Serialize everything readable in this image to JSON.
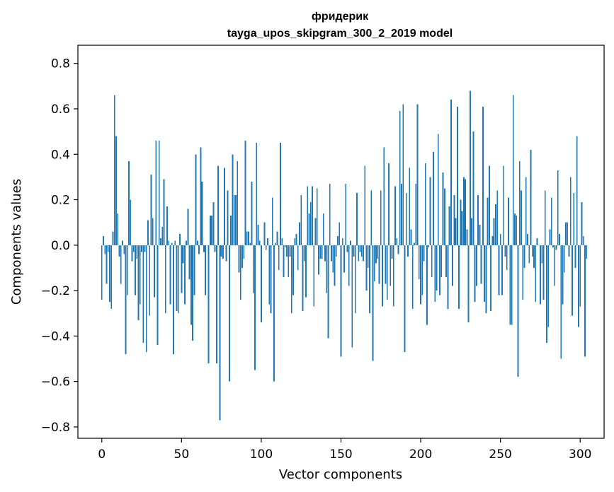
{
  "chart_data": {
    "type": "bar",
    "title_line1": "фридерик",
    "title_line2": "tayga_upos_skipgram_300_2_2019 model",
    "xlabel": "Vector components",
    "ylabel": "Components values",
    "xlim": [
      -15,
      315
    ],
    "ylim": [
      -0.85,
      0.88
    ],
    "xticks": [
      0,
      50,
      100,
      150,
      200,
      250,
      300
    ],
    "xtick_labels": [
      "0",
      "50",
      "100",
      "150",
      "200",
      "250",
      "300"
    ],
    "yticks": [
      -0.8,
      -0.6,
      -0.4,
      -0.2,
      0.0,
      0.2,
      0.4,
      0.6,
      0.8
    ],
    "ytick_labels": [
      "−0.8",
      "−0.6",
      "−0.4",
      "−0.2",
      "0.0",
      "0.2",
      "0.4",
      "0.6",
      "0.8"
    ],
    "bar_color": "#1f77b4",
    "values": [
      -0.24,
      0.04,
      -0.04,
      -0.17,
      -0.03,
      -0.25,
      -0.28,
      0.06,
      0.66,
      0.48,
      0.14,
      -0.05,
      -0.17,
      0.02,
      -0.04,
      -0.48,
      -0.22,
      0.37,
      0.2,
      -0.07,
      -0.03,
      -0.22,
      -0.06,
      -0.33,
      -0.26,
      -0.03,
      -0.43,
      -0.03,
      -0.47,
      0.11,
      -0.31,
      0.31,
      0.12,
      -0.23,
      0.46,
      -0.44,
      0.46,
      0.03,
      0.08,
      0.29,
      -0.3,
      0.17,
      0.02,
      -0.26,
      0.01,
      -0.48,
      0.02,
      -0.29,
      -0.3,
      0.05,
      -0.21,
      -0.08,
      -0.26,
      0.02,
      0.16,
      -0.15,
      -0.35,
      -0.42,
      -0.22,
      0.4,
      0.02,
      -0.04,
      0.43,
      0.28,
      -0.03,
      -0.22,
      0.0,
      -0.52,
      0.13,
      0.13,
      0.19,
      -0.03,
      -0.52,
      0.35,
      -0.77,
      -0.05,
      -0.06,
      0.34,
      -0.07,
      0.24,
      -0.6,
      0.13,
      0.4,
      0.22,
      0.22,
      0.37,
      -0.12,
      -0.24,
      -0.1,
      -0.06,
      0.46,
      0.06,
      0.06,
      0.01,
      0.28,
      -0.21,
      -0.55,
      0.45,
      0.09,
      0.02,
      -0.34,
      0.0,
      0.1,
      -0.02,
      0.03,
      -0.26,
      -0.3,
      0.21,
      -0.6,
      0.01,
      0.06,
      -0.11,
      0.45,
      0.03,
      -0.14,
      -0.01,
      -0.05,
      -0.14,
      -0.05,
      -0.3,
      -0.22,
      0.03,
      0.05,
      -0.11,
      0.1,
      0.22,
      -0.29,
      -0.07,
      -0.23,
      0.26,
      0.14,
      0.19,
      0.26,
      -0.27,
      0.12,
      0.25,
      -0.13,
      -0.06,
      -0.06,
      0.14,
      -0.07,
      -0.21,
      -0.41,
      0.27,
      -0.07,
      -0.12,
      -0.18,
      -0.05,
      0.04,
      0.1,
      -0.49,
      0.03,
      -0.12,
      0.27,
      -0.03,
      -0.18,
      0.02,
      -0.45,
      -0.05,
      -0.3,
      0.23,
      -0.07,
      -0.03,
      -0.05,
      -0.07,
      0.35,
      -0.2,
      -0.1,
      -0.3,
      0.24,
      -0.51,
      -0.16,
      -0.08,
      -0.06,
      -0.17,
      0.24,
      -0.27,
      0.43,
      -0.17,
      -0.24,
      0.36,
      -0.18,
      -0.06,
      -0.27,
      0.26,
      0.03,
      -0.04,
      0.59,
      0.27,
      0.62,
      -0.47,
      0.23,
      -0.05,
      0.34,
      0.07,
      -0.28,
      0.01,
      0.27,
      0.62,
      -0.15,
      -0.26,
      -0.22,
      -0.07,
      0.36,
      -0.35,
      -0.01,
      0.3,
      -0.14,
      0.41,
      -0.25,
      -0.2,
      0.49,
      -0.22,
      -0.14,
      0.32,
      0.25,
      -0.14,
      -0.28,
      0.17,
      0.64,
      -0.18,
      0.22,
      0.12,
      0.61,
      -0.28,
      0.2,
      0.15,
      0.3,
      0.29,
      0.07,
      -0.34,
      0.68,
      0.12,
      0.5,
      -0.25,
      -0.18,
      0.22,
      0.09,
      -0.17,
      0.61,
      -0.25,
      -0.3,
      0.21,
      0.35,
      -0.29,
      0.04,
      0.12,
      0.18,
      0.24,
      -0.22,
      0.05,
      -0.22,
      0.35,
      -0.05,
      -0.11,
      0.21,
      -0.35,
      -0.35,
      0.66,
      0.14,
      0.13,
      -0.58,
      0.37,
      0.24,
      -0.24,
      -0.1,
      0.3,
      0.05,
      -0.08,
      0.42,
      -0.05,
      -0.1,
      -0.25,
      0.03,
      0.0,
      -0.26,
      -0.08,
      -0.24,
      0.24,
      -0.43,
      -0.36,
      0.07,
      0.21,
      -0.01,
      -0.18,
      -0.02,
      0.33,
      0.05,
      -0.5,
      -0.26,
      -0.12,
      0.1,
      0.1,
      -0.05,
      0.3,
      -0.31,
      0.23,
      -0.1,
      0.48,
      -0.36,
      -0.27,
      0.19,
      0.04,
      -0.49,
      -0.06
    ]
  }
}
